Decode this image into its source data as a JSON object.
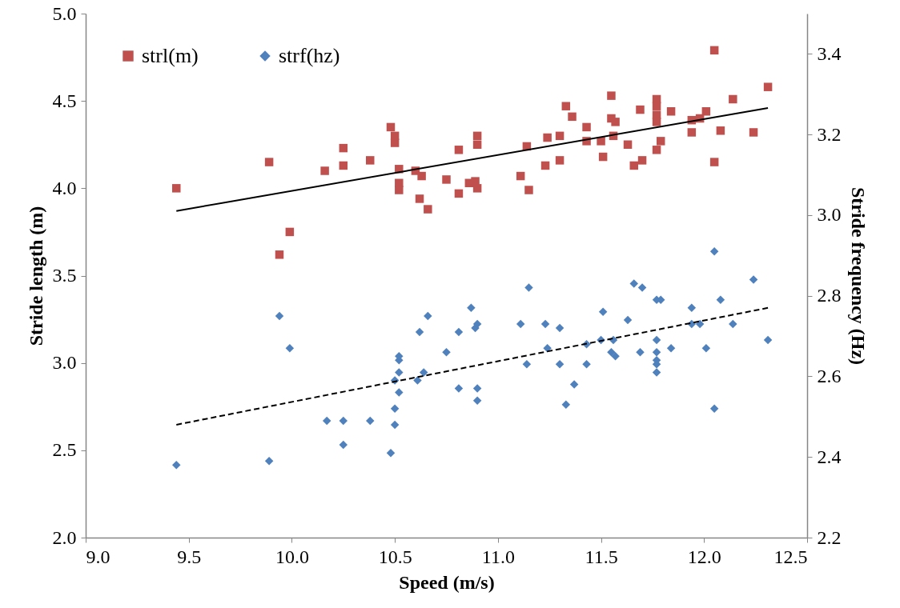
{
  "chart_data": {
    "type": "scatter",
    "xlabel": "Speed (m/s)",
    "ylabel": "Stride length (m)",
    "y2label": "Stride frequency (Hz)",
    "xlim": [
      9.0,
      12.5
    ],
    "xticks": [
      {
        "value": 9,
        "label": "9.0"
      },
      {
        "value": 9.5,
        "label": "9.5"
      },
      {
        "value": 10,
        "label": "10.0"
      },
      {
        "value": 10.5,
        "label": "10.5"
      },
      {
        "value": 11,
        "label": "11.0"
      },
      {
        "value": 11.5,
        "label": "11.5"
      },
      {
        "value": 12,
        "label": "12.0"
      },
      {
        "value": 12.5,
        "label": "12.5"
      }
    ],
    "ylim": [
      2.0,
      5.0
    ],
    "yticks": [
      {
        "value": 2,
        "label": "2.0"
      },
      {
        "value": 2.5,
        "label": "2.5"
      },
      {
        "value": 3,
        "label": "3.0"
      },
      {
        "value": 3.5,
        "label": "3.5"
      },
      {
        "value": 4,
        "label": "4.0"
      },
      {
        "value": 4.5,
        "label": "4.5"
      },
      {
        "value": 5,
        "label": "5.0"
      }
    ],
    "y2lim": [
      2.2,
      3.5
    ],
    "y2ticks": [
      2.2,
      2.4,
      2.6,
      2.8,
      {
        "value": 3,
        "label": "3.0"
      },
      3.2,
      3.4
    ],
    "grid": false,
    "legend": "top left",
    "series": [
      {
        "name": "strl(m)",
        "type": "scatter",
        "marker": "square",
        "color": "#c0504d",
        "x": [
          9.44,
          9.89,
          9.94,
          9.99,
          10.16,
          10.25,
          10.25,
          10.38,
          10.48,
          10.5,
          10.5,
          10.52,
          10.52,
          10.52,
          10.6,
          10.63,
          10.62,
          10.66,
          10.75,
          10.81,
          10.81,
          10.9,
          10.9,
          10.86,
          10.89,
          10.9,
          11.14,
          11.11,
          11.15,
          11.24,
          11.23,
          11.3,
          11.3,
          11.33,
          11.36,
          11.43,
          11.43,
          11.5,
          11.51,
          11.55,
          11.55,
          11.57,
          11.56,
          11.63,
          11.66,
          11.7,
          11.69,
          11.77,
          11.77,
          11.77,
          11.77,
          11.79,
          11.77,
          11.84,
          11.94,
          11.94,
          11.98,
          12.01,
          12.05,
          12.05,
          12.08,
          12.14,
          12.24,
          12.31
        ],
        "values": [
          4.0,
          4.15,
          3.62,
          3.75,
          4.1,
          4.23,
          4.13,
          4.16,
          4.35,
          4.3,
          4.26,
          4.11,
          4.03,
          3.99,
          4.1,
          4.07,
          3.94,
          3.88,
          4.05,
          4.22,
          3.97,
          4.3,
          4.25,
          4.03,
          4.04,
          4.0,
          4.24,
          4.07,
          3.99,
          4.29,
          4.13,
          4.3,
          4.16,
          4.47,
          4.41,
          4.35,
          4.27,
          4.27,
          4.18,
          4.53,
          4.4,
          4.38,
          4.3,
          4.25,
          4.13,
          4.16,
          4.45,
          4.51,
          4.47,
          4.42,
          4.38,
          4.27,
          4.22,
          4.44,
          4.39,
          4.32,
          4.4,
          4.44,
          4.79,
          4.15,
          4.33,
          4.51,
          4.32,
          4.58
        ]
      },
      {
        "type": "line",
        "line_style": "solid",
        "marker": "none",
        "color": "#000000",
        "x": [
          9.44,
          12.31
        ],
        "values": [
          3.87,
          4.46
        ]
      },
      {
        "name": "strf(hz)",
        "type": "scatter",
        "marker": "diamond",
        "axis": "y2",
        "color": "#4f81bd",
        "x": [
          9.44,
          9.89,
          9.94,
          9.99,
          10.17,
          10.25,
          10.25,
          10.38,
          10.48,
          10.5,
          10.5,
          10.5,
          10.52,
          10.52,
          10.52,
          10.52,
          10.61,
          10.64,
          10.66,
          10.62,
          10.75,
          10.81,
          10.81,
          10.87,
          10.9,
          10.89,
          10.9,
          10.9,
          11.11,
          11.15,
          11.14,
          11.23,
          11.24,
          11.3,
          11.3,
          11.37,
          11.33,
          11.43,
          11.43,
          11.51,
          11.5,
          11.56,
          11.55,
          11.57,
          11.63,
          11.66,
          11.7,
          11.69,
          11.77,
          11.79,
          11.77,
          11.77,
          11.77,
          11.77,
          11.77,
          11.84,
          11.94,
          11.94,
          11.98,
          12.01,
          12.05,
          12.05,
          12.08,
          12.14,
          12.24,
          12.31
        ],
        "values": [
          2.38,
          2.39,
          2.75,
          2.67,
          2.49,
          2.49,
          2.43,
          2.49,
          2.41,
          2.48,
          2.52,
          2.59,
          2.56,
          2.61,
          2.64,
          2.65,
          2.59,
          2.61,
          2.75,
          2.71,
          2.66,
          2.71,
          2.57,
          2.77,
          2.73,
          2.72,
          2.57,
          2.54,
          2.73,
          2.82,
          2.63,
          2.73,
          2.67,
          2.72,
          2.63,
          2.58,
          2.53,
          2.68,
          2.63,
          2.76,
          2.69,
          2.69,
          2.66,
          2.65,
          2.74,
          2.83,
          2.82,
          2.66,
          2.79,
          2.79,
          2.69,
          2.66,
          2.64,
          2.63,
          2.61,
          2.67,
          2.77,
          2.73,
          2.73,
          2.67,
          2.91,
          2.52,
          2.79,
          2.73,
          2.84,
          2.69
        ]
      },
      {
        "type": "line",
        "line_style": "dashed",
        "marker": "none",
        "axis": "y2",
        "color": "#000000",
        "x": [
          9.44,
          12.31
        ],
        "values": [
          2.48,
          2.77
        ]
      }
    ]
  }
}
